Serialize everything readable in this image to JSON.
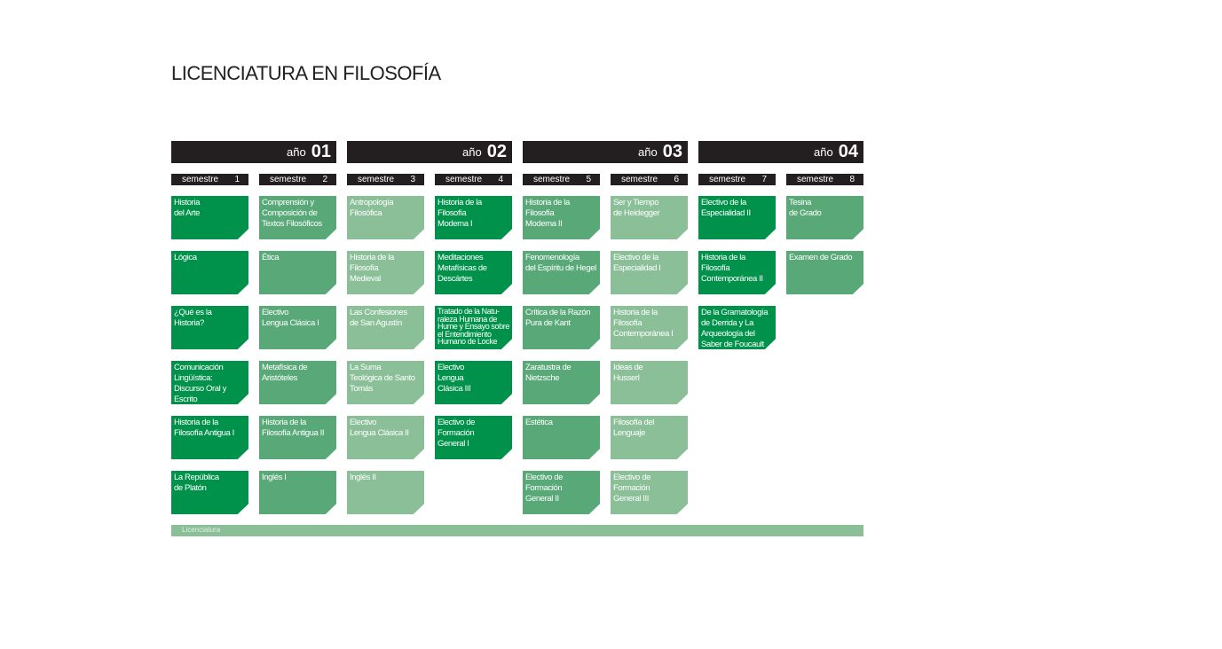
{
  "header": {
    "title": "LICENCIATURA EN FILOSOFÍA"
  },
  "years": [
    {
      "label": "año",
      "number": "01",
      "semesters": [
        {
          "label": "semestre",
          "number": "1",
          "color": "#00914a",
          "courses": [
            "Historia\ndel Arte",
            "Lógica",
            "¿Qué es la\nHistoria?",
            "Comunicación\nLingüística:\nDiscurso Oral y\nEscrito",
            "Historia de la\nFilosofía Antigua I",
            "La República\nde Platón"
          ]
        },
        {
          "label": "semestre",
          "number": "2",
          "color": "#58a878",
          "courses": [
            "Comprensión y\nComposición de\nTextos Filosóficos",
            "Ética",
            "Electivo\nLengua Clásica I",
            "Metafísica de\nAristóteles",
            "Historia de la\nFilosofía Antigua II",
            "Inglés I"
          ]
        }
      ]
    },
    {
      "label": "año",
      "number": "02",
      "semesters": [
        {
          "label": "semestre",
          "number": "3",
          "color": "#8abf98",
          "courses": [
            "Antropología\nFilosófica",
            "Historia de la\nFilosofía\nMedieval",
            "Las Confesiones\nde San Agustín",
            "La Suma\nTeológica de Santo\nTomás",
            "Electivo\nLengua Clásica II",
            "Inglés II"
          ]
        },
        {
          "label": "semestre",
          "number": "4",
          "color": "#00914a",
          "courses": [
            "Historia de la\nFilosofía\nModerna I",
            "Meditaciones\nMetafísicas de\nDescártes",
            "Tratado de la Natu-\nraleza Humana de\nHume y Ensayo sobre\nel Entendimiento\nHumano de Locke",
            "Electivo\nLengua\nClásica III",
            "Electivo de\nFormación\nGeneral I"
          ]
        }
      ]
    },
    {
      "label": "año",
      "number": "03",
      "semesters": [
        {
          "label": "semestre",
          "number": "5",
          "color": "#58a878",
          "courses": [
            "Historia de la\nFilosofía\nModerna II",
            "Fenomenología\ndel Espíritu de Hegel",
            "Crítica de la Razón\nPura de Kant",
            "Zaratustra de\nNietzsche",
            "Estética",
            "Electivo de\nFormación\nGeneral II"
          ]
        },
        {
          "label": "semestre",
          "number": "6",
          "color": "#8abf98",
          "courses": [
            "Ser y Tiempo\nde Heidegger",
            "Electivo de la\nEspecialidad I",
            "Historia de la\nFilosofía\nContemporánea I",
            "Ideas de\nHusserl",
            "Filosofía del\nLenguaje",
            "Electivo de\nFormación\nGeneral III"
          ]
        }
      ]
    },
    {
      "label": "año",
      "number": "04",
      "semesters": [
        {
          "label": "semestre",
          "number": "7",
          "color": "#00914a",
          "courses": [
            "Electivo de la\nEspecialidad II",
            "Historia de la\nFilosofía\nContemporánea II",
            "De la Gramatología\nde Derrida y La\nArqueología del\nSaber de Foucault"
          ]
        },
        {
          "label": "semestre",
          "number": "8",
          "color": "#58a878",
          "courses": [
            "Tesina\nde Grado",
            "Examen de Grado"
          ]
        }
      ]
    }
  ],
  "footer": {
    "label": "Licenciatura"
  }
}
